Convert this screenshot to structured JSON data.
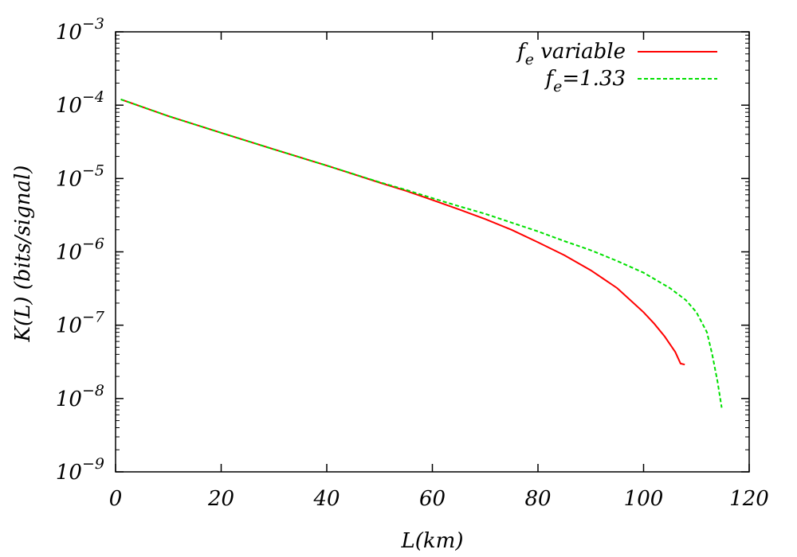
{
  "chart_data": {
    "type": "line",
    "xlabel": "L(km)",
    "ylabel": "K(L) (bits/signal)",
    "xlim": [
      0,
      120
    ],
    "ylim": [
      1e-09,
      0.001
    ],
    "yscale": "log",
    "grid": false,
    "legend_position": "top-right",
    "x_ticks": [
      {
        "value": 0,
        "label": "0"
      },
      {
        "value": 20,
        "label": "20"
      },
      {
        "value": 40,
        "label": "40"
      },
      {
        "value": 60,
        "label": "60"
      },
      {
        "value": 80,
        "label": "80"
      },
      {
        "value": 100,
        "label": "100"
      },
      {
        "value": 120,
        "label": "120"
      }
    ],
    "y_ticks": [
      {
        "value": 1e-09,
        "base": "10",
        "exp": "−9"
      },
      {
        "value": 1e-08,
        "base": "10",
        "exp": "−8"
      },
      {
        "value": 1e-07,
        "base": "10",
        "exp": "−7"
      },
      {
        "value": 1e-06,
        "base": "10",
        "exp": "−6"
      },
      {
        "value": 1e-05,
        "base": "10",
        "exp": "−5"
      },
      {
        "value": 0.0001,
        "base": "10",
        "exp": "−4"
      },
      {
        "value": 0.001,
        "base": "10",
        "exp": "−3"
      }
    ],
    "series": [
      {
        "name": "f_e variable",
        "legend_main": "f",
        "legend_sub": "e",
        "legend_rest": " variable",
        "color": "#ff0000",
        "dash": "solid",
        "x": [
          1,
          10,
          20,
          30,
          40,
          50,
          55,
          60,
          65,
          70,
          75,
          80,
          85,
          90,
          95,
          100,
          102,
          104,
          105,
          106,
          107,
          107.8
        ],
        "y": [
          0.00012,
          7.1e-05,
          4.2e-05,
          2.5e-05,
          1.5e-05,
          8.8e-06,
          6.8e-06,
          5.1e-06,
          3.8e-06,
          2.8e-06,
          2e-06,
          1.35e-06,
          9e-07,
          5.6e-07,
          3.2e-07,
          1.5e-07,
          1.05e-07,
          7e-08,
          5.5e-08,
          4.3e-08,
          3e-08,
          2.9e-08
        ]
      },
      {
        "name": "f_e=1.33",
        "legend_main": "f",
        "legend_sub": "e",
        "legend_rest": "=1.33",
        "color": "#00e000",
        "dash": "dashed",
        "x": [
          1,
          10,
          20,
          30,
          40,
          50,
          55,
          60,
          65,
          70,
          75,
          80,
          85,
          90,
          95,
          100,
          105,
          108,
          110,
          112,
          113,
          114,
          114.8
        ],
        "y": [
          0.00012,
          7.1e-05,
          4.2e-05,
          2.5e-05,
          1.5e-05,
          8.9e-06,
          7e-06,
          5.4e-06,
          4.2e-06,
          3.3e-06,
          2.5e-06,
          1.9e-06,
          1.4e-06,
          1.05e-06,
          7.5e-07,
          5.2e-07,
          3.2e-07,
          2.2e-07,
          1.5e-07,
          8e-08,
          4e-08,
          1.7e-08,
          7.5e-09
        ]
      }
    ]
  }
}
